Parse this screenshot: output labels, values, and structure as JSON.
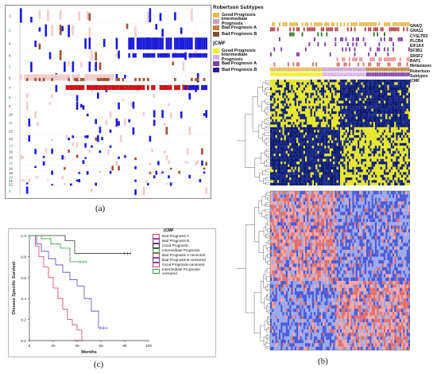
{
  "captions": {
    "a": "(a)",
    "b": "(b)",
    "c": "(c)"
  },
  "panel_a": {
    "row_labels": [
      "1",
      "2",
      "3",
      "4",
      "5",
      "6",
      "7",
      "8",
      "9",
      "10",
      "11",
      "12",
      "13",
      "14",
      "15",
      "16",
      "17",
      "18",
      "19",
      "20",
      "21",
      "22",
      "X"
    ],
    "colors": {
      "white": "#ffffff",
      "pink": "#f2cccc",
      "blue": "#1a1adb",
      "red": "#cc1111",
      "brown": "#a0522d"
    }
  },
  "legend_a": {
    "robertson_title": "Robertson Subtypes",
    "robertson": [
      {
        "label": "Good Prognosis",
        "color": "#e8b84a"
      },
      {
        "label": "Intermediate Prognosis",
        "color": "#c8a2c8"
      },
      {
        "label": "Bad Prognosis A",
        "color": "#c08040"
      },
      {
        "label": "Bad Prognosis B",
        "color": "#7a5230"
      }
    ],
    "jcmf_title": "jCMF",
    "jcmf": [
      {
        "label": "Good Prognosis",
        "color": "#f0f020"
      },
      {
        "label": "Intermediate Prognosis",
        "color": "#d8b0e8"
      },
      {
        "label": "Bad Prognosis A",
        "color": "#7a3fa0"
      },
      {
        "label": "Bad Prognosis B",
        "color": "#2a1f8a"
      }
    ]
  },
  "gene_tracks": [
    "GNAQ",
    "GNA11",
    "CYSLTR2",
    "PLCB4",
    "EIF1AX",
    "SF3B1",
    "SRSF2",
    "BAP1",
    "Metastases",
    "Robertson Subtypes",
    "jCMF"
  ],
  "km": {
    "ylabel": "Disease Specific Survival",
    "xlabel": "Months",
    "xticks": [
      "0",
      "20",
      "40",
      "60",
      "80",
      "100"
    ],
    "yticks": [
      "0.0",
      "0.2",
      "0.4",
      "0.6",
      "0.8",
      "1.0"
    ],
    "legend_title": "jCMF",
    "legend_items": [
      {
        "label": "Bad Prognosis A",
        "color": "#d44060"
      },
      {
        "label": "Bad Prognosis B",
        "color": "#6040c0"
      },
      {
        "label": "Good Prognosis",
        "color": "#333333"
      },
      {
        "label": "Intermediate Prognosis",
        "color": "#30a040"
      },
      {
        "label": "Bad Prognosis A-censored",
        "color": "#d44060"
      },
      {
        "label": "Bad Prognosis B-censored",
        "color": "#6040c0"
      },
      {
        "label": "Good Prognosis-censored",
        "color": "#d44060"
      },
      {
        "label": "Intermediate Prognosis-censored",
        "color": "#30a040"
      }
    ]
  },
  "chart_data": {
    "type": "line",
    "xlabel": "Months",
    "ylabel": "Disease Specific Survival",
    "xlim": [
      0,
      100
    ],
    "ylim": [
      0,
      1
    ],
    "series": [
      {
        "name": "Bad Prognosis A",
        "color": "#d44060",
        "x": [
          0,
          5,
          8,
          12,
          16,
          20,
          24,
          28,
          32,
          36,
          40,
          44
        ],
        "y": [
          1.0,
          0.9,
          0.8,
          0.7,
          0.6,
          0.5,
          0.4,
          0.3,
          0.2,
          0.15,
          0.1,
          0.0
        ]
      },
      {
        "name": "Bad Prognosis B",
        "color": "#6040c0",
        "x": [
          0,
          6,
          10,
          16,
          22,
          28,
          34,
          40,
          46,
          52,
          58,
          65
        ],
        "y": [
          1.0,
          0.92,
          0.85,
          0.78,
          0.72,
          0.65,
          0.58,
          0.52,
          0.4,
          0.28,
          0.12,
          0.12
        ]
      },
      {
        "name": "Good Prognosis",
        "color": "#333333",
        "x": [
          0,
          20,
          30,
          38,
          60,
          85
        ],
        "y": [
          1.0,
          1.0,
          0.95,
          0.83,
          0.83,
          0.83
        ]
      },
      {
        "name": "Intermediate Prognosis",
        "color": "#30a040",
        "x": [
          0,
          10,
          18,
          26,
          34,
          48
        ],
        "y": [
          1.0,
          0.97,
          0.92,
          0.88,
          0.75,
          0.75
        ]
      }
    ]
  }
}
